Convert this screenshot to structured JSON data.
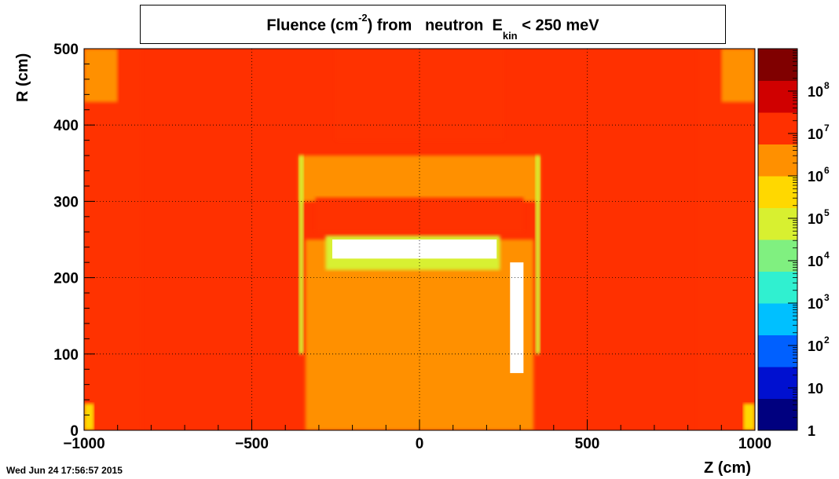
{
  "chart_data": {
    "type": "heatmap",
    "title": {
      "prefix": "Fluence (cm",
      "superscript": "-2",
      "middle": ") from   neutron  E",
      "subscript": "kin",
      "suffix": "< 250 meV"
    },
    "xlabel": "Z (cm)",
    "ylabel": "R (cm)",
    "xlim": [
      -1000,
      1000
    ],
    "ylim": [
      0,
      500
    ],
    "x_ticks": [
      -1000,
      -500,
      0,
      500,
      1000
    ],
    "x_tick_labels": [
      "−1000",
      "−500",
      "0",
      "500",
      "1000"
    ],
    "y_ticks": [
      0,
      100,
      200,
      300,
      400,
      500
    ],
    "y_tick_labels": [
      "0",
      "100",
      "200",
      "300",
      "400",
      "500"
    ],
    "grid": true,
    "colorbar": {
      "scale": "log",
      "range": [
        1,
        1000000000.0
      ],
      "tick_labels": [
        {
          "value": 1,
          "base": "1",
          "exp": ""
        },
        {
          "value": 10,
          "base": "10",
          "exp": ""
        },
        {
          "value": 100,
          "base": "10",
          "exp": "2"
        },
        {
          "value": 1000,
          "base": "10",
          "exp": "3"
        },
        {
          "value": 10000,
          "base": "10",
          "exp": "4"
        },
        {
          "value": 100000,
          "base": "10",
          "exp": "5"
        },
        {
          "value": 1000000,
          "base": "10",
          "exp": "6"
        },
        {
          "value": 10000000,
          "base": "10",
          "exp": "7"
        },
        {
          "value": 100000000,
          "base": "10",
          "exp": "8"
        }
      ],
      "colors": [
        "#00007f",
        "#0010d0",
        "#0060ff",
        "#00c0ff",
        "#30f0d0",
        "#80f080",
        "#d8f030",
        "#ffd800",
        "#ff9000",
        "#ff3000",
        "#d00000",
        "#800000"
      ]
    },
    "regions": [
      {
        "name": "background",
        "z": [
          -1000,
          1000
        ],
        "r": [
          0,
          500
        ],
        "log_fluence": 7.3
      },
      {
        "name": "outer-left-dark-band",
        "z": [
          -1000,
          -830
        ],
        "r": [
          0,
          500
        ],
        "log_fluence": 7.7
      },
      {
        "name": "outer-right-dark-band",
        "z": [
          830,
          1000
        ],
        "r": [
          0,
          500
        ],
        "log_fluence": 7.7
      },
      {
        "name": "left-endcap-corner-top",
        "z": [
          -1000,
          -900
        ],
        "r": [
          430,
          500
        ],
        "log_fluence": 6.5
      },
      {
        "name": "right-endcap-corner-top",
        "z": [
          900,
          1000
        ],
        "r": [
          430,
          500
        ],
        "log_fluence": 6.5
      },
      {
        "name": "left-endcap-corner-bottom",
        "z": [
          -1000,
          -970
        ],
        "r": [
          0,
          35
        ],
        "log_fluence": 5.8
      },
      {
        "name": "right-endcap-corner-bottom",
        "z": [
          965,
          1000
        ],
        "r": [
          0,
          35
        ],
        "log_fluence": 5.8
      },
      {
        "name": "top-center-band",
        "z": [
          -250,
          250
        ],
        "r": [
          380,
          500
        ],
        "log_fluence": 7.0
      },
      {
        "name": "solenoid-upper-block",
        "z": [
          -360,
          360
        ],
        "r": [
          300,
          360
        ],
        "log_fluence": 6.5
      },
      {
        "name": "calorimeter-band",
        "z": [
          -310,
          310
        ],
        "r": [
          260,
          305
        ],
        "log_fluence": 7.4
      },
      {
        "name": "left-coil-vertical",
        "z": [
          -360,
          -345
        ],
        "r": [
          100,
          360
        ],
        "log_fluence": 5.3
      },
      {
        "name": "right-coil-vertical",
        "z": [
          345,
          360
        ],
        "r": [
          100,
          360
        ],
        "log_fluence": 5.3
      },
      {
        "name": "inner-tracker-volume",
        "z": [
          -340,
          340
        ],
        "r": [
          0,
          250
        ],
        "log_fluence": 6.6
      },
      {
        "name": "low-fluence-ring-green",
        "z": [
          -280,
          240
        ],
        "r": [
          210,
          255
        ],
        "log_fluence": 5.0
      },
      {
        "name": "void-ring",
        "z": [
          -260,
          230
        ],
        "r": [
          225,
          250
        ],
        "log_fluence": 0
      },
      {
        "name": "right-inner-void",
        "z": [
          270,
          310
        ],
        "r": [
          75,
          220
        ],
        "log_fluence": 0
      }
    ]
  },
  "footer": {
    "timestamp": "Wed Jun 24 17:56:57 2015"
  }
}
